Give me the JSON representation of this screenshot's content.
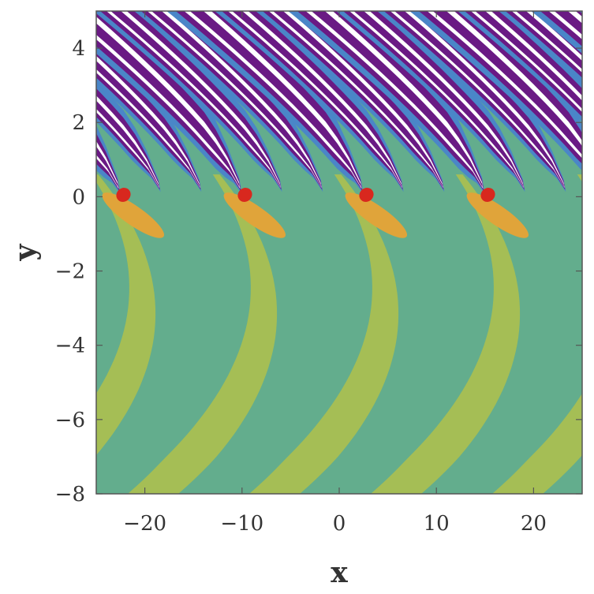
{
  "chart_data": {
    "type": "heatmap",
    "title": "",
    "xlabel": "x",
    "ylabel": "y",
    "xlim": [
      -25,
      25
    ],
    "ylim": [
      -8,
      5
    ],
    "x_ticks": [
      -20,
      -10,
      0,
      10,
      20
    ],
    "y_ticks": [
      -8,
      -6,
      -4,
      -2,
      0,
      2,
      4
    ],
    "x_tick_labels": [
      "−20",
      "−10",
      "0",
      "10",
      "20"
    ],
    "y_tick_labels": [
      "−8",
      "−6",
      "−4",
      "−2",
      "0",
      "2",
      "4"
    ],
    "grid": false,
    "legend": "none",
    "pattern_period_x": 12.5,
    "feature_centers_x": [
      -22.8,
      -10.3,
      2.2,
      14.7
    ],
    "contour_colors": [
      "#ffffff",
      "#6a1a84",
      "#4a86c8",
      "#63ad8d",
      "#a5be55",
      "#e0a43a",
      "#d8281e"
    ],
    "colors": {
      "frame": "#555555",
      "text": "#333333",
      "background_band": "#63ad8d",
      "yellow_band": "#a5be55",
      "blue_band": "#4a86c8",
      "purple_band": "#6a1a84",
      "white_band": "#ffffff",
      "orange_spot": "#e0a43a",
      "red_spot": "#d8281e"
    }
  }
}
